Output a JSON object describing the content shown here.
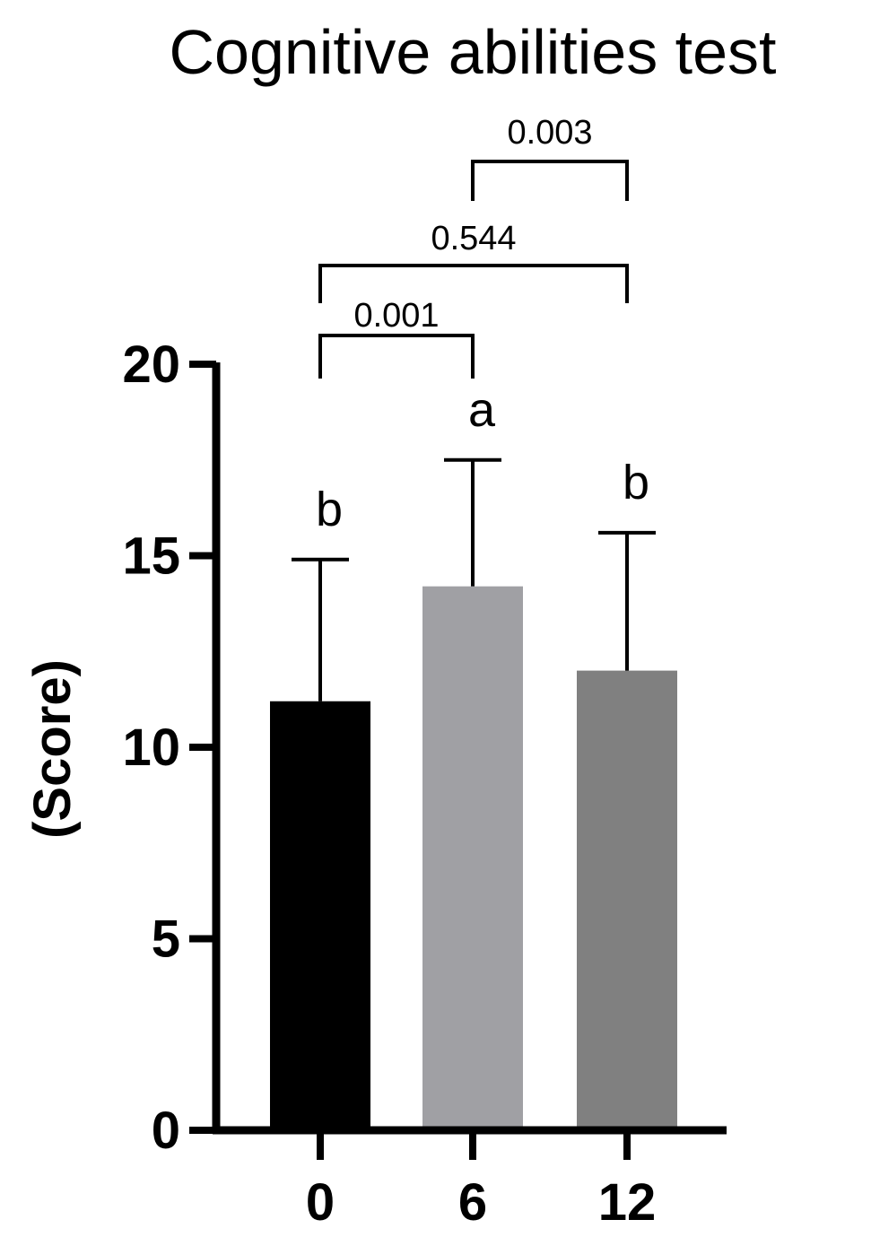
{
  "chart_data": {
    "type": "bar",
    "title": "Cognitive abilities test",
    "xlabel": "",
    "ylabel": "(Score)",
    "categories": [
      "0",
      "6",
      "12"
    ],
    "values": [
      11.2,
      14.2,
      12.0
    ],
    "error_upper": [
      14.9,
      17.5,
      15.6
    ],
    "bar_colors": [
      "#000000",
      "#a0a0a4",
      "#808080"
    ],
    "significance_letters": [
      "b",
      "a",
      "b"
    ],
    "ylim": [
      0,
      20
    ],
    "yticks": [
      "0",
      "5",
      "10",
      "15",
      "20"
    ],
    "comparisons": [
      {
        "from": 0,
        "to": 1,
        "p": "0.001"
      },
      {
        "from": 0,
        "to": 2,
        "p": "0.544"
      },
      {
        "from": 1,
        "to": 2,
        "p": "0.003"
      }
    ],
    "grid": false,
    "legend": "none"
  }
}
